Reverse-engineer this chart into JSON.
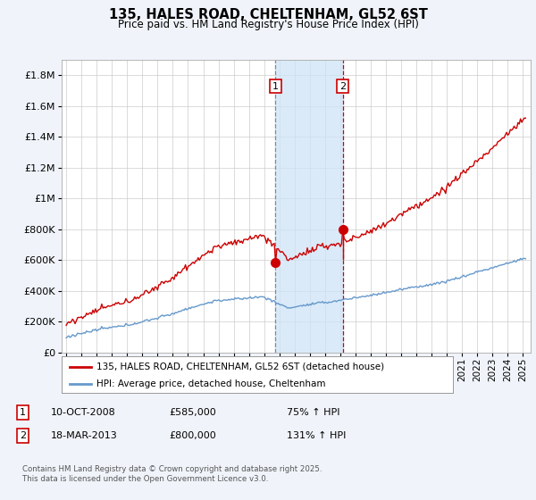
{
  "title_line1": "135, HALES ROAD, CHELTENHAM, GL52 6ST",
  "title_line2": "Price paid vs. HM Land Registry's House Price Index (HPI)",
  "legend_label1": "135, HALES ROAD, CHELTENHAM, GL52 6ST (detached house)",
  "legend_label2": "HPI: Average price, detached house, Cheltenham",
  "sale1_date": "10-OCT-2008",
  "sale1_price": 585000,
  "sale1_hpi": "75% ↑ HPI",
  "sale2_date": "18-MAR-2013",
  "sale2_price": 800000,
  "sale2_hpi": "131% ↑ HPI",
  "footnote": "Contains HM Land Registry data © Crown copyright and database right 2025.\nThis data is licensed under the Open Government Licence v3.0.",
  "ylim": [
    0,
    1900000
  ],
  "start_year": 1995,
  "end_year": 2025,
  "bg_color": "#f0f4fa",
  "plot_bg_color": "#ffffff",
  "grid_color": "#cccccc",
  "line1_color": "#cc0000",
  "line2_color": "#6699cc",
  "shade_color": "#d0e4f7",
  "vline1_color": "#888888",
  "vline2_color": "#cc0000",
  "marker_color": "#cc0000",
  "marker_size": 7
}
